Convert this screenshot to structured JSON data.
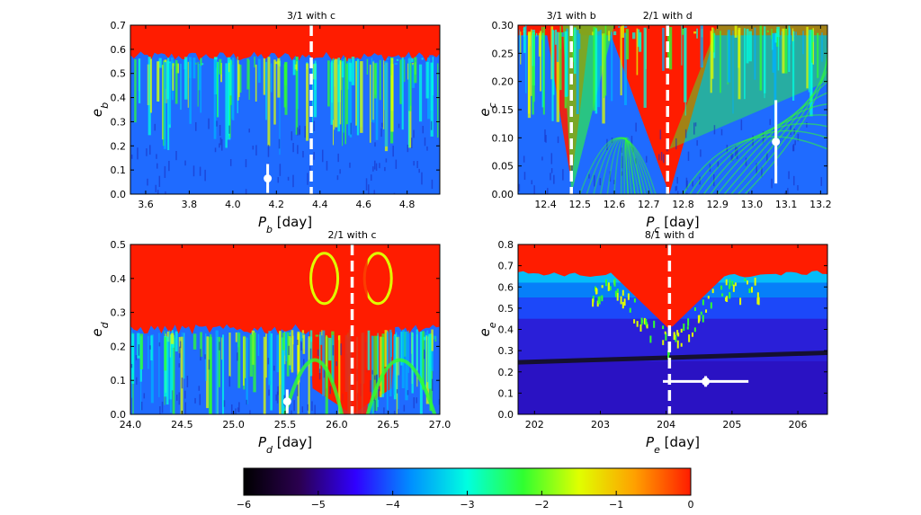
{
  "colors": {
    "colormap": [
      "#000000",
      "#2b0050",
      "#3000ff",
      "#0090ff",
      "#00ffe0",
      "#30ff30",
      "#e0ff00",
      "#ffa000",
      "#ff1c00"
    ],
    "marker": "#ffffff",
    "resonance_line": "#ffffff",
    "chaotic": "#ff1c00",
    "stable": "#1060ff"
  },
  "chart_data": [
    {
      "type": "heatmap",
      "id": "b",
      "xlabel": "P",
      "xsub": "b",
      "xunit": " [day]",
      "ylabel": "e",
      "ysub": "b",
      "xlim": [
        3.53,
        4.95
      ],
      "ylim": [
        0.0,
        0.7
      ],
      "xticks": [
        "3.6",
        "3.8",
        "4.0",
        "4.2",
        "4.4",
        "4.6",
        "4.8"
      ],
      "yticks": [
        "0.0",
        "0.1",
        "0.2",
        "0.3",
        "0.4",
        "0.5",
        "0.6",
        "0.7"
      ],
      "resonances": [
        {
          "x": 4.36,
          "label": "3/1 with c"
        }
      ],
      "point": {
        "x": 4.16,
        "y": 0.065,
        "yerr": 0.06,
        "xerr": 0.0
      }
    },
    {
      "type": "heatmap",
      "id": "c",
      "xlabel": "P",
      "xsub": "c",
      "xunit": " [day]",
      "ylabel": "e",
      "ysub": "c",
      "xlim": [
        12.32,
        13.22
      ],
      "ylim": [
        0.0,
        0.3
      ],
      "xticks": [
        "12.4",
        "12.5",
        "12.6",
        "12.7",
        "12.8",
        "12.9",
        "13.0",
        "13.1",
        "13.2"
      ],
      "yticks": [
        "0.00",
        "0.05",
        "0.10",
        "0.15",
        "0.20",
        "0.25",
        "0.30"
      ],
      "resonances": [
        {
          "x": 12.475,
          "label": "3/1 with b"
        },
        {
          "x": 12.755,
          "label": "2/1 with d"
        }
      ],
      "point": {
        "x": 13.07,
        "y": 0.093,
        "yerr": 0.074,
        "xerr": 0.0
      }
    },
    {
      "type": "heatmap",
      "id": "d",
      "xlabel": "P",
      "xsub": "d",
      "xunit": " [day]",
      "ylabel": "e",
      "ysub": "d",
      "xlim": [
        24.0,
        27.0
      ],
      "ylim": [
        0.0,
        0.5
      ],
      "xticks": [
        "24.0",
        "24.5",
        "25.0",
        "25.5",
        "26.0",
        "26.5",
        "27.0"
      ],
      "yticks": [
        "0.0",
        "0.1",
        "0.2",
        "0.3",
        "0.4",
        "0.5"
      ],
      "resonances": [
        {
          "x": 26.15,
          "label": "2/1 with c"
        }
      ],
      "point": {
        "x": 25.52,
        "y": 0.038,
        "yerr": 0.035,
        "xerr": 0.0
      }
    },
    {
      "type": "heatmap",
      "id": "e",
      "xlabel": "P",
      "xsub": "e",
      "xunit": " [day]",
      "ylabel": "e",
      "ysub": "e",
      "xlim": [
        201.75,
        206.45
      ],
      "ylim": [
        0.0,
        0.8
      ],
      "xticks": [
        "202",
        "203",
        "204",
        "205",
        "206"
      ],
      "yticks": [
        "0.0",
        "0.1",
        "0.2",
        "0.3",
        "0.4",
        "0.5",
        "0.6",
        "0.7",
        "0.8"
      ],
      "resonances": [
        {
          "x": 204.05,
          "label": "8/1 with d"
        }
      ],
      "point": {
        "x": 204.6,
        "y": 0.155,
        "yerr": 0.025,
        "xerr": 0.65
      }
    }
  ],
  "colorbar": {
    "min": -6,
    "max": 0,
    "ticks": [
      "−6",
      "−5",
      "−4",
      "−3",
      "−2",
      "−1",
      "0"
    ]
  }
}
